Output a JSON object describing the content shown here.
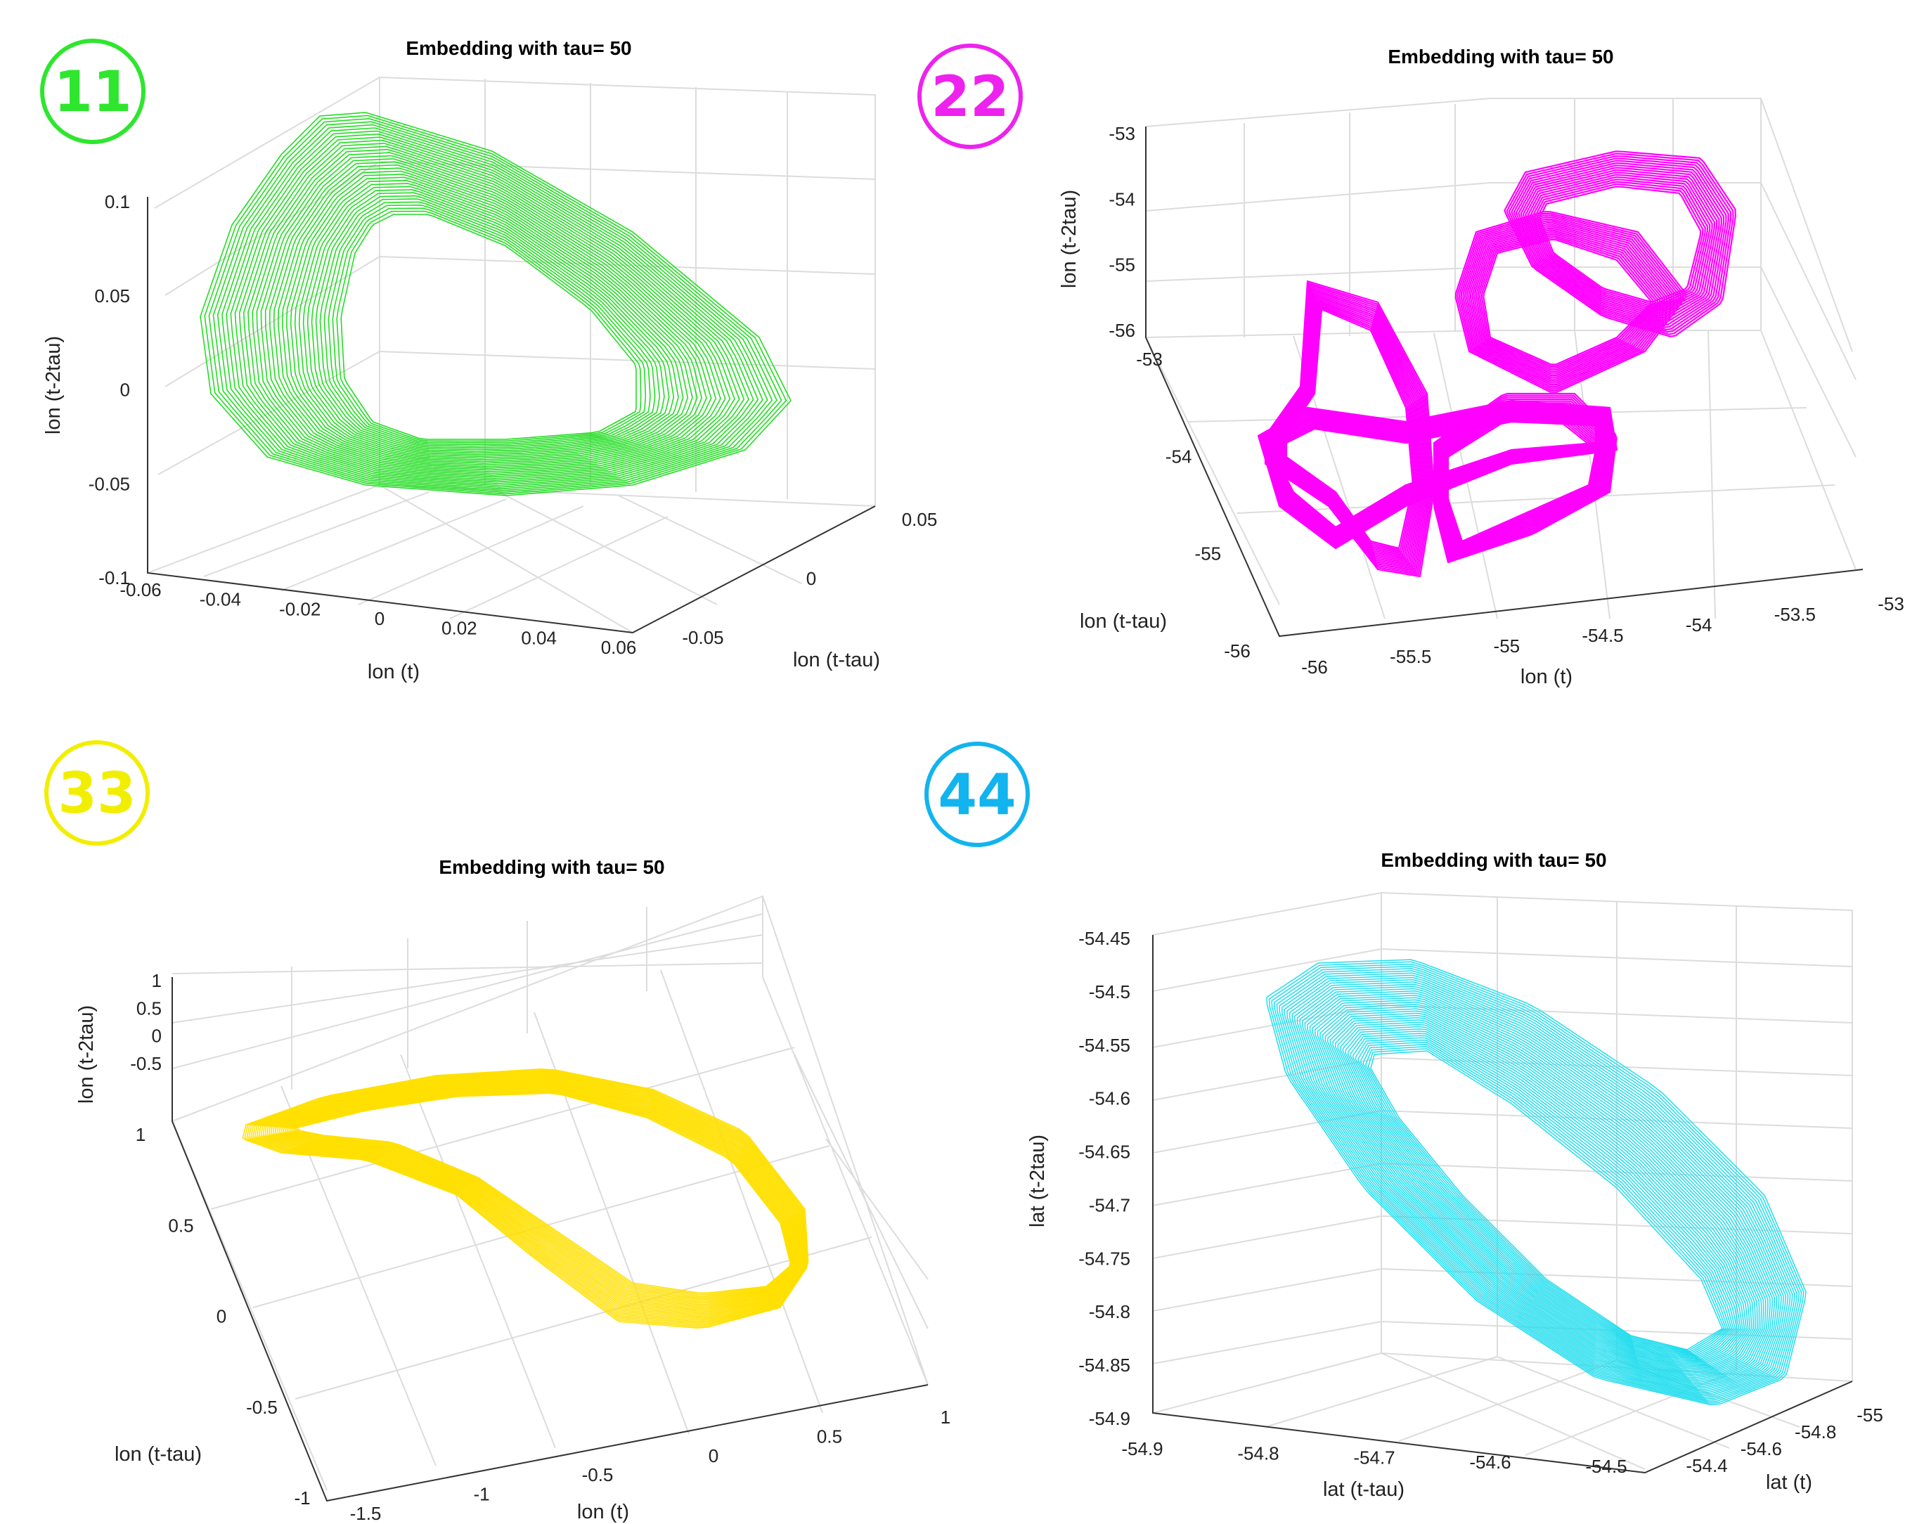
{
  "chart_data": [
    {
      "type": "line",
      "plot": "3d",
      "badge": "11",
      "badge_color": "#2ee62e",
      "series_color": "#22dd22",
      "title": "Embedding with tau= 50",
      "xlabel": "lon (t)",
      "ylabel": "lon (t-tau)",
      "zlabel": "lon (t-2tau)",
      "xticks": [
        "-0.06",
        "-0.04",
        "-0.02",
        "0",
        "0.02",
        "0.04",
        "0.06"
      ],
      "yticks": [
        "-0.05",
        "0",
        "0.05"
      ],
      "zticks": [
        "-0.1",
        "-0.05",
        "0",
        "0.05",
        "0.1"
      ],
      "xlim": [
        -0.06,
        0.06
      ],
      "ylim": [
        -0.05,
        0.05
      ],
      "zlim": [
        -0.1,
        0.1
      ],
      "grid": true
    },
    {
      "type": "line",
      "plot": "3d",
      "badge": "22",
      "badge_color": "#ee22ee",
      "series_color": "#ff00ff",
      "title": "Embedding with tau= 50",
      "xlabel": "lon (t)",
      "ylabel": "lon (t-tau)",
      "zlabel": "lon (t-2tau)",
      "xticks": [
        "-56",
        "-55.5",
        "-55",
        "-54.5",
        "-54",
        "-53.5",
        "-53"
      ],
      "yticks": [
        "-56",
        "-55",
        "-54",
        "-53"
      ],
      "zticks": [
        "-56",
        "-55",
        "-54",
        "-53"
      ],
      "xlim": [
        -56,
        -53
      ],
      "ylim": [
        -56,
        -53
      ],
      "zlim": [
        -56,
        -53
      ],
      "grid": true
    },
    {
      "type": "line",
      "plot": "3d",
      "badge": "33",
      "badge_color": "#f2ee00",
      "series_color": "#ffe000",
      "title": "Embedding with tau= 50",
      "xlabel": "lon (t)",
      "ylabel": "lon (t-tau)",
      "zlabel": "lon (t-2tau)",
      "xticks": [
        "-1.5",
        "-1",
        "-0.5",
        "0",
        "0.5",
        "1"
      ],
      "yticks": [
        "-1",
        "-0.5",
        "0",
        "0.5",
        "1"
      ],
      "zticks": [
        "-0.5",
        "0",
        "0.5",
        "1"
      ],
      "xlim": [
        -1.5,
        1
      ],
      "ylim": [
        -1,
        1
      ],
      "zlim": [
        -1,
        1
      ],
      "grid": true
    },
    {
      "type": "line",
      "plot": "3d",
      "badge": "44",
      "badge_color": "#11b4ee",
      "series_color": "#22ddee",
      "title": "Embedding with tau= 50",
      "xlabel": "lat (t)",
      "ylabel": "lat (t-tau)",
      "zlabel": "lat (t-2tau)",
      "xticks": [
        "-55",
        "-54.8",
        "-54.6",
        "-54.4"
      ],
      "yticks": [
        "-54.9",
        "-54.8",
        "-54.7",
        "-54.6",
        "-54.5"
      ],
      "zticks": [
        "-54.9",
        "-54.85",
        "-54.8",
        "-54.75",
        "-54.7",
        "-54.65",
        "-54.6",
        "-54.55",
        "-54.5",
        "-54.45"
      ],
      "xlim": [
        -55,
        -54.4
      ],
      "ylim": [
        -54.9,
        -54.5
      ],
      "zlim": [
        -54.9,
        -54.45
      ],
      "grid": true
    }
  ]
}
